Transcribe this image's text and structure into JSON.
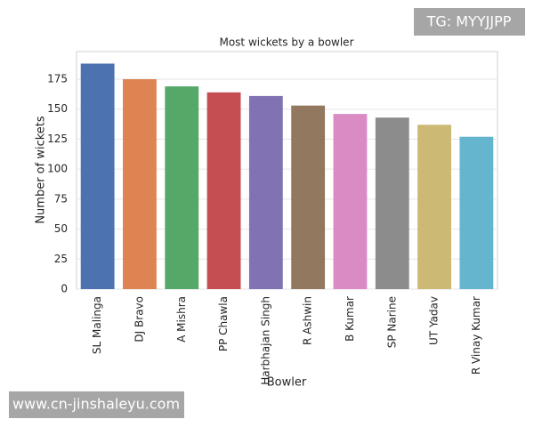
{
  "chart_data": {
    "type": "bar",
    "title": "Most wickets by a bowler",
    "x_label": "Bowler",
    "y_label": "Number of wickets",
    "categories": [
      "SL Malinga",
      "DJ Bravo",
      "A Mishra",
      "PP Chawla",
      "Harbhajan Singh",
      "R Ashwin",
      "B Kumar",
      "SP Narine",
      "UT Yadav",
      "R Vinay Kumar"
    ],
    "values": [
      188,
      175,
      169,
      164,
      161,
      153,
      146,
      143,
      137,
      127
    ],
    "colors": [
      "#4c72b0",
      "#dd8452",
      "#55a868",
      "#c44e52",
      "#8172b3",
      "#937860",
      "#da8bc3",
      "#8c8c8c",
      "#ccb974",
      "#64b5cd"
    ],
    "ylim": [
      0,
      198
    ],
    "yticks": [
      0,
      25,
      50,
      75,
      100,
      125,
      150,
      175
    ],
    "grid": true
  },
  "watermarks": [
    "TG: MYYJJPP",
    "www.cn-jinshaleyu.com"
  ]
}
